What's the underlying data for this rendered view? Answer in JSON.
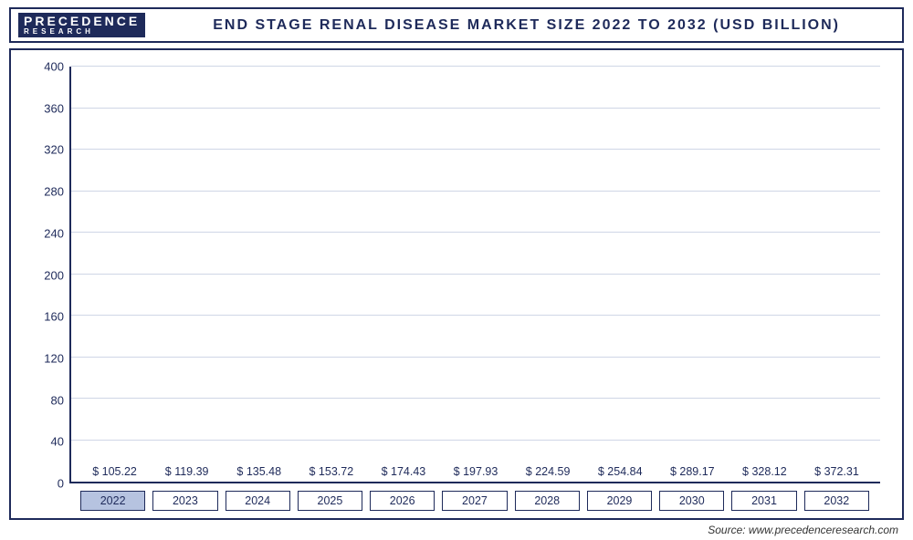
{
  "logo": {
    "line1": "PRECEDENCE",
    "line2": "RESEARCH"
  },
  "title": "END STAGE RENAL DISEASE MARKET SIZE 2022 TO 2032 (USD BILLION)",
  "source": "Source: www.precedenceresearch.com",
  "chart": {
    "type": "bar",
    "ylim": [
      0,
      400
    ],
    "ytick_step": 40,
    "grid_color": "#cfd6e6",
    "axis_color": "#1e2a5a",
    "background_color": "#ffffff",
    "bar_width": 0.82,
    "label_prefix": "$ ",
    "label_fontsize": 12.5,
    "title_fontsize": 16,
    "xtick_highlight_bg": "#b6c3e0",
    "categories": [
      "2022",
      "2023",
      "2024",
      "2025",
      "2026",
      "2027",
      "2028",
      "2029",
      "2030",
      "2031",
      "2032"
    ],
    "values": [
      105.22,
      119.39,
      135.48,
      153.72,
      174.43,
      197.93,
      224.59,
      254.84,
      289.17,
      328.12,
      372.31
    ],
    "bar_colors": [
      "#b6c3e0",
      "#596a9c",
      "#4a5c94",
      "#3e5390",
      "#324a8c",
      "#2a4284",
      "#1d356f",
      "#182c60",
      "#142551",
      "#101f46",
      "#0f1d42"
    ]
  }
}
